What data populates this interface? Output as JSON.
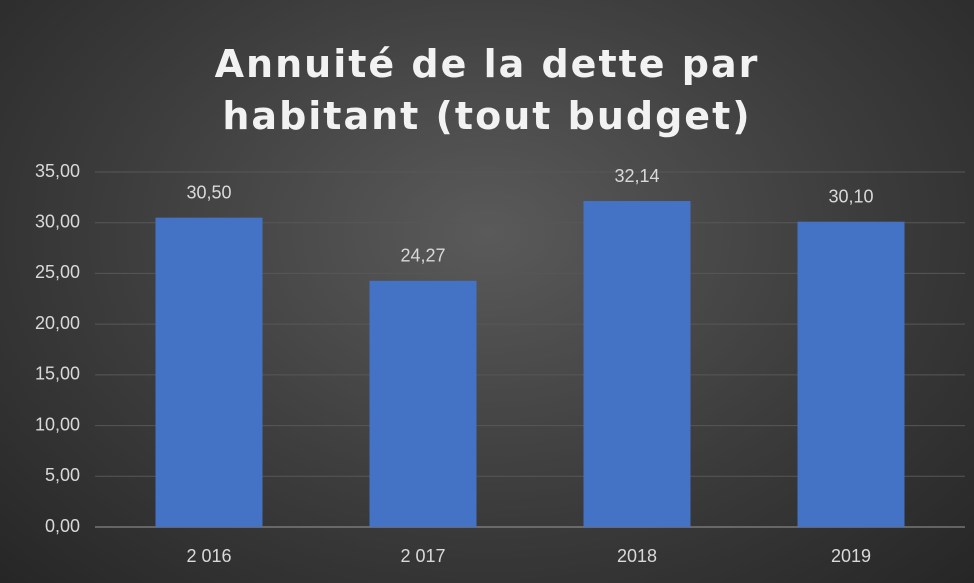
{
  "chart_data": {
    "type": "bar",
    "title": "Annuité de la dette par habitant (tout budget)",
    "categories": [
      "2 016",
      "2 017",
      "2018",
      "2019"
    ],
    "values": [
      30.5,
      24.27,
      32.14,
      30.1
    ],
    "value_labels": [
      "30,50",
      "24,27",
      "32,14",
      "30,10"
    ],
    "color": "#4472c4",
    "ylim": [
      0,
      35
    ],
    "yticks": [
      {
        "value": 0,
        "label": "0,00"
      },
      {
        "value": 5,
        "label": "5,00"
      },
      {
        "value": 10,
        "label": "10,00"
      },
      {
        "value": 15,
        "label": "15,00"
      },
      {
        "value": 20,
        "label": "20,00"
      },
      {
        "value": 25,
        "label": "25,00"
      },
      {
        "value": 30,
        "label": "30,00"
      },
      {
        "value": 35,
        "label": "35,00"
      }
    ],
    "grid": true
  }
}
